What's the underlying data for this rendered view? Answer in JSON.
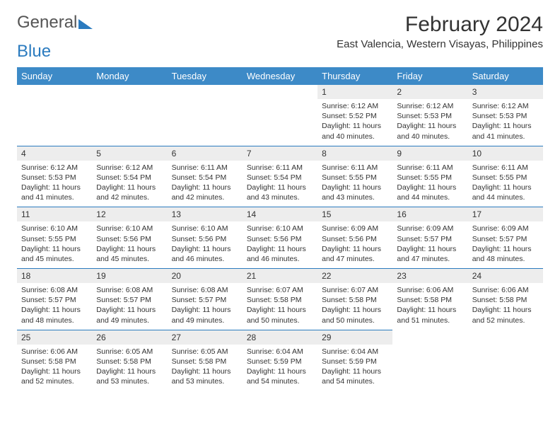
{
  "brand": {
    "part1": "General",
    "part2": "Blue"
  },
  "title": "February 2024",
  "location": "East Valencia, Western Visayas, Philippines",
  "colors": {
    "header_bg": "#3d8ac7",
    "daynum_bg": "#ededed",
    "rule": "#2b7bbf"
  },
  "weekdays": [
    "Sunday",
    "Monday",
    "Tuesday",
    "Wednesday",
    "Thursday",
    "Friday",
    "Saturday"
  ],
  "weeks": [
    [
      null,
      null,
      null,
      null,
      {
        "n": "1",
        "sr": "6:12 AM",
        "ss": "5:52 PM",
        "dl": "11 hours and 40 minutes."
      },
      {
        "n": "2",
        "sr": "6:12 AM",
        "ss": "5:53 PM",
        "dl": "11 hours and 40 minutes."
      },
      {
        "n": "3",
        "sr": "6:12 AM",
        "ss": "5:53 PM",
        "dl": "11 hours and 41 minutes."
      }
    ],
    [
      {
        "n": "4",
        "sr": "6:12 AM",
        "ss": "5:53 PM",
        "dl": "11 hours and 41 minutes."
      },
      {
        "n": "5",
        "sr": "6:12 AM",
        "ss": "5:54 PM",
        "dl": "11 hours and 42 minutes."
      },
      {
        "n": "6",
        "sr": "6:11 AM",
        "ss": "5:54 PM",
        "dl": "11 hours and 42 minutes."
      },
      {
        "n": "7",
        "sr": "6:11 AM",
        "ss": "5:54 PM",
        "dl": "11 hours and 43 minutes."
      },
      {
        "n": "8",
        "sr": "6:11 AM",
        "ss": "5:55 PM",
        "dl": "11 hours and 43 minutes."
      },
      {
        "n": "9",
        "sr": "6:11 AM",
        "ss": "5:55 PM",
        "dl": "11 hours and 44 minutes."
      },
      {
        "n": "10",
        "sr": "6:11 AM",
        "ss": "5:55 PM",
        "dl": "11 hours and 44 minutes."
      }
    ],
    [
      {
        "n": "11",
        "sr": "6:10 AM",
        "ss": "5:55 PM",
        "dl": "11 hours and 45 minutes."
      },
      {
        "n": "12",
        "sr": "6:10 AM",
        "ss": "5:56 PM",
        "dl": "11 hours and 45 minutes."
      },
      {
        "n": "13",
        "sr": "6:10 AM",
        "ss": "5:56 PM",
        "dl": "11 hours and 46 minutes."
      },
      {
        "n": "14",
        "sr": "6:10 AM",
        "ss": "5:56 PM",
        "dl": "11 hours and 46 minutes."
      },
      {
        "n": "15",
        "sr": "6:09 AM",
        "ss": "5:56 PM",
        "dl": "11 hours and 47 minutes."
      },
      {
        "n": "16",
        "sr": "6:09 AM",
        "ss": "5:57 PM",
        "dl": "11 hours and 47 minutes."
      },
      {
        "n": "17",
        "sr": "6:09 AM",
        "ss": "5:57 PM",
        "dl": "11 hours and 48 minutes."
      }
    ],
    [
      {
        "n": "18",
        "sr": "6:08 AM",
        "ss": "5:57 PM",
        "dl": "11 hours and 48 minutes."
      },
      {
        "n": "19",
        "sr": "6:08 AM",
        "ss": "5:57 PM",
        "dl": "11 hours and 49 minutes."
      },
      {
        "n": "20",
        "sr": "6:08 AM",
        "ss": "5:57 PM",
        "dl": "11 hours and 49 minutes."
      },
      {
        "n": "21",
        "sr": "6:07 AM",
        "ss": "5:58 PM",
        "dl": "11 hours and 50 minutes."
      },
      {
        "n": "22",
        "sr": "6:07 AM",
        "ss": "5:58 PM",
        "dl": "11 hours and 50 minutes."
      },
      {
        "n": "23",
        "sr": "6:06 AM",
        "ss": "5:58 PM",
        "dl": "11 hours and 51 minutes."
      },
      {
        "n": "24",
        "sr": "6:06 AM",
        "ss": "5:58 PM",
        "dl": "11 hours and 52 minutes."
      }
    ],
    [
      {
        "n": "25",
        "sr": "6:06 AM",
        "ss": "5:58 PM",
        "dl": "11 hours and 52 minutes."
      },
      {
        "n": "26",
        "sr": "6:05 AM",
        "ss": "5:58 PM",
        "dl": "11 hours and 53 minutes."
      },
      {
        "n": "27",
        "sr": "6:05 AM",
        "ss": "5:58 PM",
        "dl": "11 hours and 53 minutes."
      },
      {
        "n": "28",
        "sr": "6:04 AM",
        "ss": "5:59 PM",
        "dl": "11 hours and 54 minutes."
      },
      {
        "n": "29",
        "sr": "6:04 AM",
        "ss": "5:59 PM",
        "dl": "11 hours and 54 minutes."
      },
      null,
      null
    ]
  ],
  "labels": {
    "sunrise": "Sunrise:",
    "sunset": "Sunset:",
    "daylight": "Daylight:"
  }
}
